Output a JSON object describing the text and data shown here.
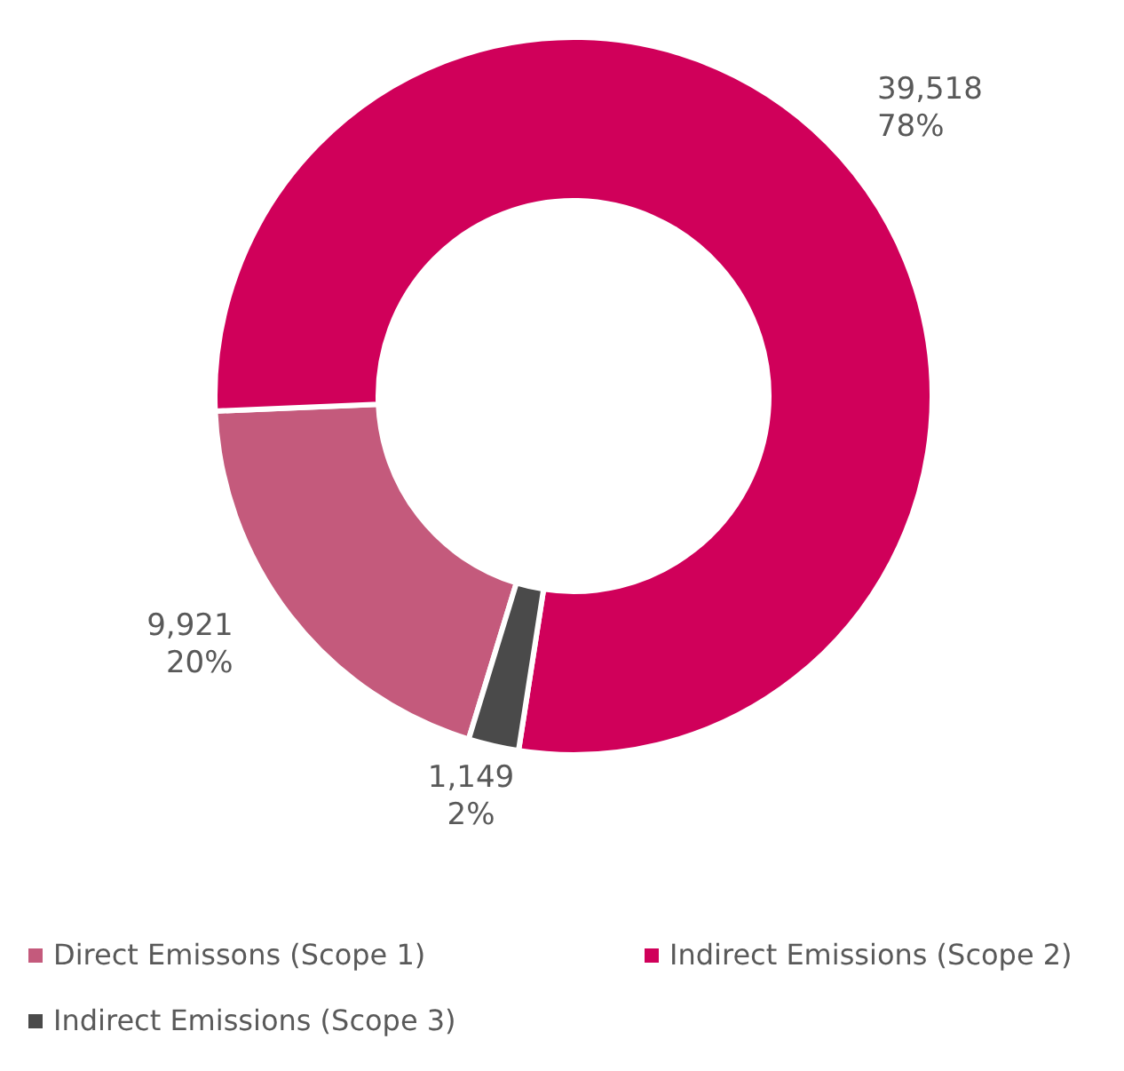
{
  "chart_data": {
    "type": "donut",
    "categories": [
      "Direct Emissons (Scope 1)",
      "Indirect Emissions (Scope 2)",
      "Indirect Emissions (Scope 3)"
    ],
    "values": [
      9921,
      39518,
      1149
    ],
    "colors": [
      "#c45a7c",
      "#d0005a",
      "#4a4a4a"
    ],
    "value_labels": [
      "9,921\n20%",
      "39,518\n78%",
      "1,149\n2%"
    ],
    "legend": "bottom"
  }
}
